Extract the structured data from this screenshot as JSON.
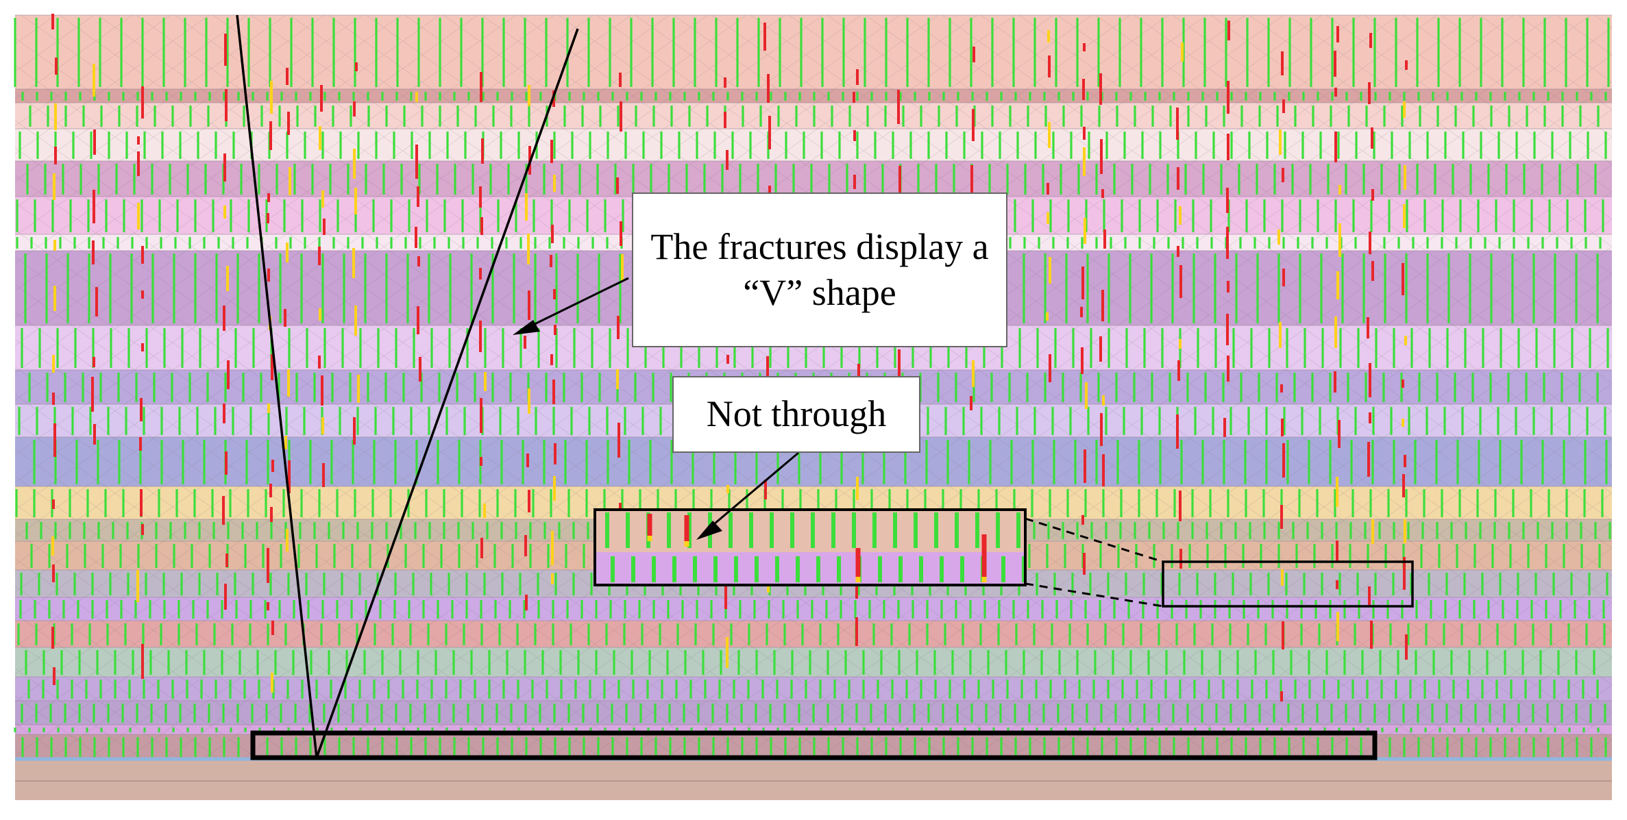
{
  "annotations": {
    "v_shape": "The fractures display a “V” shape",
    "not_through": "Not through"
  },
  "colors": {
    "background": "#ffffff",
    "fracture_open": "#e8252b",
    "fracture_transition": "#ffd21a",
    "joint": "#3cde3c",
    "outline": "#000000",
    "strata": [
      "#f4c6bb",
      "#d9a3a3",
      "#f6d3cf",
      "#f7e6e7",
      "#d8a8cd",
      "#f1c2e6",
      "#f7e7f0",
      "#c7a2d3",
      "#e8c9ef",
      "#bba8dd",
      "#d9c7ef",
      "#a9aadb",
      "#f3d9a6",
      "#c9bba8",
      "#e2b8a2",
      "#bfb8c9",
      "#cda9e6",
      "#e3a7a7",
      "#b9ccc2",
      "#c3a9dd",
      "#bba2d0",
      "#d8a7e0",
      "#c69ba3",
      "#b2b2b2",
      "#d3b2a6"
    ]
  }
}
